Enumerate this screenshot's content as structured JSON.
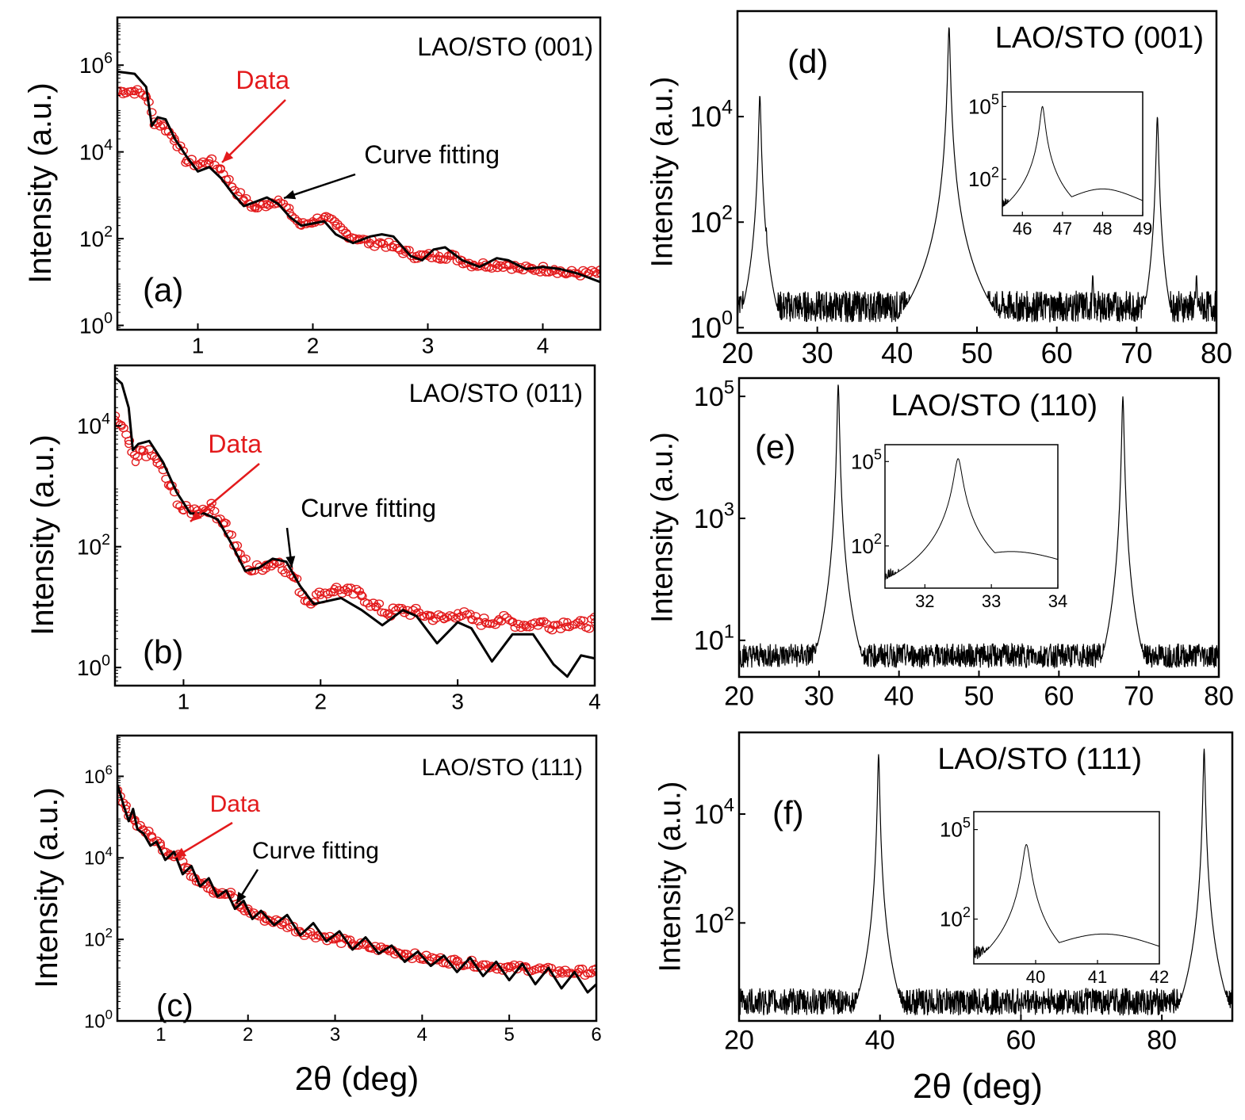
{
  "chart_data": [
    {
      "id": "a",
      "type": "line",
      "title": "LAO/STO (001)",
      "panel_label": "(a)",
      "xlabel": "",
      "ylabel": "Intensity (a.u.)",
      "xlim": [
        0.3,
        4.5
      ],
      "ylim_log10": [
        -0.1,
        7.1
      ],
      "yscale": "log",
      "xticks": [
        1,
        2,
        3,
        4
      ],
      "yticks_exp": [
        0,
        2,
        4,
        6
      ],
      "annotations": [
        {
          "text": "Data",
          "color": "#e31a1c"
        },
        {
          "text": "Curve fitting",
          "color": "#000000"
        }
      ],
      "series": [
        {
          "name": "Data",
          "style": "circles",
          "color": "#e31a1c",
          "x": [
            0.35,
            0.45,
            0.55,
            0.62,
            0.7,
            0.8,
            0.9,
            1.0,
            1.1,
            1.2,
            1.3,
            1.4,
            1.5,
            1.6,
            1.7,
            1.8,
            1.9,
            2.0,
            2.1,
            2.2,
            2.3,
            2.4,
            2.5,
            2.6,
            2.7,
            2.8,
            2.9,
            3.0,
            3.1,
            3.2,
            3.3,
            3.4,
            3.5,
            3.6,
            3.7,
            3.8,
            3.9,
            4.0,
            4.1,
            4.2,
            4.3,
            4.4,
            4.5
          ],
          "y_log10": [
            5.4,
            5.4,
            5.3,
            4.7,
            4.6,
            4.3,
            3.8,
            3.7,
            3.8,
            3.6,
            3.2,
            2.9,
            2.7,
            2.8,
            2.9,
            2.6,
            2.3,
            2.4,
            2.5,
            2.3,
            2.1,
            2.0,
            1.9,
            1.9,
            1.8,
            1.7,
            1.6,
            1.6,
            1.6,
            1.6,
            1.5,
            1.4,
            1.4,
            1.4,
            1.4,
            1.3,
            1.3,
            1.3,
            1.3,
            1.2,
            1.2,
            1.2,
            1.2
          ]
        },
        {
          "name": "Curve fitting",
          "style": "line",
          "color": "#000000",
          "x": [
            0.3,
            0.45,
            0.55,
            0.6,
            0.65,
            0.72,
            0.8,
            0.9,
            1.0,
            1.1,
            1.2,
            1.3,
            1.4,
            1.5,
            1.6,
            1.7,
            1.8,
            1.9,
            2.0,
            2.1,
            2.2,
            2.35,
            2.5,
            2.6,
            2.7,
            2.85,
            2.95,
            3.05,
            3.15,
            3.3,
            3.45,
            3.6,
            3.7,
            3.85,
            4.0,
            4.15,
            4.3,
            4.5
          ],
          "y_log10": [
            5.85,
            5.8,
            5.5,
            4.6,
            4.8,
            4.75,
            4.3,
            3.9,
            3.55,
            3.65,
            3.4,
            3.05,
            2.75,
            2.85,
            2.95,
            2.8,
            2.5,
            2.3,
            2.35,
            2.4,
            2.1,
            1.9,
            2.05,
            2.1,
            2.05,
            1.6,
            1.5,
            1.75,
            1.8,
            1.5,
            1.35,
            1.55,
            1.5,
            1.3,
            1.35,
            1.3,
            1.2,
            1.0
          ]
        }
      ]
    },
    {
      "id": "b",
      "type": "line",
      "title": "LAO/STO (011)",
      "panel_label": "(b)",
      "xlabel": "",
      "ylabel": "Intensity (a.u.)",
      "xlim": [
        0.5,
        4.0
      ],
      "ylim_log10": [
        -0.3,
        5.0
      ],
      "yscale": "log",
      "xticks": [
        1,
        2,
        3,
        4
      ],
      "yticks_exp": [
        0,
        2,
        4
      ],
      "annotations": [
        {
          "text": "Data",
          "color": "#e31a1c"
        },
        {
          "text": "Curve fitting",
          "color": "#000000"
        }
      ],
      "series": [
        {
          "name": "Data",
          "style": "circles",
          "color": "#e31a1c",
          "x": [
            0.5,
            0.55,
            0.6,
            0.65,
            0.7,
            0.8,
            0.9,
            1.0,
            1.1,
            1.2,
            1.3,
            1.4,
            1.5,
            1.6,
            1.7,
            1.8,
            1.9,
            2.0,
            2.1,
            2.2,
            2.3,
            2.4,
            2.5,
            2.6,
            2.7,
            2.8,
            2.9,
            3.0,
            3.1,
            3.2,
            3.3,
            3.4,
            3.5,
            3.6,
            3.7,
            3.8,
            3.9,
            4.0
          ],
          "y_log10": [
            4.1,
            4.0,
            3.7,
            3.4,
            3.6,
            3.45,
            3.0,
            2.6,
            2.6,
            2.65,
            2.4,
            1.9,
            1.6,
            1.7,
            1.75,
            1.5,
            1.1,
            1.2,
            1.3,
            1.25,
            1.2,
            1.0,
            0.9,
            0.95,
            0.9,
            0.85,
            0.8,
            0.9,
            0.8,
            0.75,
            0.8,
            0.75,
            0.7,
            0.75,
            0.7,
            0.75,
            0.7,
            0.75
          ]
        },
        {
          "name": "Curve fitting",
          "style": "line",
          "color": "#000000",
          "x": [
            0.5,
            0.55,
            0.6,
            0.63,
            0.67,
            0.75,
            0.85,
            0.95,
            1.05,
            1.15,
            1.25,
            1.35,
            1.45,
            1.55,
            1.65,
            1.75,
            1.85,
            1.95,
            2.05,
            2.15,
            2.3,
            2.45,
            2.6,
            2.7,
            2.85,
            3.0,
            3.1,
            3.25,
            3.4,
            3.55,
            3.7,
            3.8,
            3.9,
            4.0
          ],
          "y_log10": [
            4.8,
            4.7,
            4.3,
            3.6,
            3.7,
            3.75,
            3.4,
            2.9,
            2.55,
            2.55,
            2.45,
            2.05,
            1.6,
            1.65,
            1.8,
            1.75,
            1.35,
            1.05,
            1.1,
            1.15,
            0.95,
            0.7,
            0.95,
            0.85,
            0.4,
            0.75,
            0.65,
            0.1,
            0.55,
            0.55,
            0.05,
            -0.15,
            0.2,
            0.15
          ]
        }
      ]
    },
    {
      "id": "c",
      "type": "line",
      "title": "LAO/STO (111)",
      "panel_label": "(c)",
      "xlabel": "2θ (deg)",
      "ylabel": "Intensity (a.u.)",
      "xlim": [
        0.5,
        6.0
      ],
      "ylim_log10": [
        0,
        7.0
      ],
      "yscale": "log",
      "xticks": [
        1,
        2,
        3,
        4,
        5,
        6
      ],
      "yticks_exp": [
        0,
        2,
        4,
        6
      ],
      "annotations": [
        {
          "text": "Data",
          "color": "#e31a1c"
        },
        {
          "text": "Curve fitting",
          "color": "#000000"
        }
      ],
      "series": [
        {
          "name": "Data",
          "style": "circles",
          "color": "#e31a1c",
          "x": [
            0.5,
            0.6,
            0.7,
            0.8,
            0.9,
            1.0,
            1.1,
            1.2,
            1.3,
            1.4,
            1.5,
            1.6,
            1.7,
            1.8,
            1.9,
            2.0,
            2.2,
            2.4,
            2.6,
            2.8,
            3.0,
            3.2,
            3.4,
            3.6,
            3.8,
            4.0,
            4.2,
            4.4,
            4.6,
            4.8,
            5.0,
            5.2,
            5.4,
            5.6,
            5.8,
            6.0
          ],
          "y_log10": [
            5.6,
            5.2,
            4.9,
            4.7,
            4.5,
            4.3,
            4.1,
            4.1,
            3.7,
            3.5,
            3.4,
            3.2,
            3.1,
            3.1,
            2.8,
            2.7,
            2.5,
            2.4,
            2.2,
            2.1,
            2.0,
            1.9,
            1.8,
            1.75,
            1.65,
            1.55,
            1.5,
            1.45,
            1.4,
            1.35,
            1.3,
            1.3,
            1.25,
            1.2,
            1.2,
            1.2
          ]
        },
        {
          "name": "Curve fitting",
          "style": "line",
          "color": "#000000",
          "x": [
            0.5,
            0.57,
            0.63,
            0.68,
            0.73,
            0.8,
            0.88,
            0.95,
            1.05,
            1.15,
            1.25,
            1.35,
            1.45,
            1.55,
            1.65,
            1.75,
            1.85,
            1.95,
            2.05,
            2.15,
            2.3,
            2.45,
            2.6,
            2.75,
            2.9,
            3.05,
            3.2,
            3.35,
            3.5,
            3.65,
            3.8,
            3.95,
            4.1,
            4.25,
            4.4,
            4.55,
            4.7,
            4.85,
            5.0,
            5.15,
            5.3,
            5.45,
            5.6,
            5.75,
            5.9,
            6.0
          ],
          "y_log10": [
            5.8,
            5.3,
            4.9,
            5.2,
            4.7,
            4.6,
            4.3,
            4.4,
            3.95,
            4.15,
            3.6,
            3.8,
            3.3,
            3.5,
            3.05,
            3.2,
            2.75,
            2.95,
            2.5,
            2.7,
            2.35,
            2.6,
            2.1,
            2.4,
            1.95,
            2.2,
            1.75,
            2.05,
            1.65,
            1.85,
            1.45,
            1.7,
            1.35,
            1.6,
            1.2,
            1.55,
            1.1,
            1.45,
            1.0,
            1.4,
            0.9,
            1.3,
            0.8,
            1.2,
            0.7,
            0.9
          ]
        }
      ]
    },
    {
      "id": "d",
      "type": "line",
      "title": "LAO/STO (001)",
      "panel_label": "(d)",
      "xlabel": "",
      "ylabel": "Intensity (a.u.)",
      "xlim": [
        20,
        80
      ],
      "ylim_log10": [
        -0.1,
        6.0
      ],
      "yscale": "log",
      "xticks": [
        20,
        30,
        40,
        50,
        60,
        70,
        80
      ],
      "yticks_exp": [
        0,
        2,
        4
      ],
      "peaks": [
        {
          "x": 22.8,
          "y_log10": 4.4
        },
        {
          "x": 23.6,
          "y_log10": 1.9
        },
        {
          "x": 46.5,
          "y_log10": 5.7
        },
        {
          "x": 48.0,
          "y_log10": 1.3
        },
        {
          "x": 72.6,
          "y_log10": 4.0
        },
        {
          "x": 64.5,
          "y_log10": 1.0
        },
        {
          "x": 77.5,
          "y_log10": 1.0
        }
      ],
      "baseline_log10": [
        0.1,
        0.7
      ],
      "inset": {
        "xlim": [
          45.5,
          49
        ],
        "xticks": [
          46,
          47,
          48,
          49
        ],
        "yticks_exp": [
          2,
          5
        ],
        "peaks": [
          {
            "x": 46.5,
            "y_log10": 5.0
          },
          {
            "x": 48.0,
            "y_log10": 1.6
          }
        ],
        "baseline_log10": [
          0.6,
          1.2
        ]
      }
    },
    {
      "id": "e",
      "type": "line",
      "title": "LAO/STO (110)",
      "panel_label": "(e)",
      "xlabel": "",
      "ylabel": "Intensity (a.u.)",
      "xlim": [
        20,
        80
      ],
      "ylim_log10": [
        0.4,
        5.3
      ],
      "yscale": "log",
      "xticks": [
        20,
        30,
        40,
        50,
        60,
        70,
        80
      ],
      "yticks_exp": [
        1,
        3,
        5
      ],
      "peaks": [
        {
          "x": 32.4,
          "y_log10": 5.2
        },
        {
          "x": 33.0,
          "y_log10": 1.4
        },
        {
          "x": 68.0,
          "y_log10": 5.0
        },
        {
          "x": 26.5,
          "y_log10": 0.95
        },
        {
          "x": 65.0,
          "y_log10": 0.95
        },
        {
          "x": 77.5,
          "y_log10": 0.95
        }
      ],
      "baseline_log10": [
        0.55,
        0.95
      ],
      "inset": {
        "xlim": [
          31.4,
          34
        ],
        "xticks": [
          32,
          33,
          34
        ],
        "yticks_exp": [
          2,
          5
        ],
        "peaks": [
          {
            "x": 32.5,
            "y_log10": 5.1
          },
          {
            "x": 33.3,
            "y_log10": 1.8
          }
        ],
        "baseline_log10": [
          0.6,
          1.2
        ]
      }
    },
    {
      "id": "f",
      "type": "line",
      "title": "LAO/STO (111)",
      "panel_label": "(f)",
      "xlabel": "2θ (deg)",
      "ylabel": "Intensity (a.u.)",
      "xlim": [
        20,
        90
      ],
      "ylim_log10": [
        0.2,
        5.5
      ],
      "yscale": "log",
      "xticks": [
        20,
        40,
        60,
        80
      ],
      "yticks_exp": [
        2,
        4
      ],
      "peaks": [
        {
          "x": 39.8,
          "y_log10": 5.1
        },
        {
          "x": 41.0,
          "y_log10": 1.1
        },
        {
          "x": 86.0,
          "y_log10": 5.2
        }
      ],
      "baseline_log10": [
        0.3,
        0.8
      ],
      "inset": {
        "xlim": [
          39,
          42
        ],
        "xticks": [
          40,
          41,
          42
        ],
        "yticks_exp": [
          2,
          5
        ],
        "peaks": [
          {
            "x": 39.85,
            "y_log10": 4.5
          },
          {
            "x": 41.1,
            "y_log10": 1.5
          }
        ],
        "baseline_log10": [
          0.6,
          1.1
        ]
      }
    }
  ]
}
